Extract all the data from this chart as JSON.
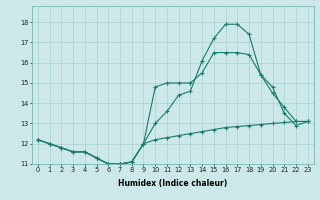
{
  "xlabel": "Humidex (Indice chaleur)",
  "bg_color": "#cce8e8",
  "grid_color": "#aad0d0",
  "line_color": "#1a7a6e",
  "xlim": [
    -0.5,
    23.5
  ],
  "ylim": [
    11.0,
    18.8
  ],
  "yticks": [
    11,
    12,
    13,
    14,
    15,
    16,
    17,
    18
  ],
  "xticks": [
    0,
    1,
    2,
    3,
    4,
    5,
    6,
    7,
    8,
    9,
    10,
    11,
    12,
    13,
    14,
    15,
    16,
    17,
    18,
    19,
    20,
    21,
    22,
    23
  ],
  "line1_x": [
    0,
    1,
    2,
    3,
    4,
    5,
    6,
    7,
    8,
    9,
    10,
    11,
    12,
    13,
    14,
    15,
    16,
    17,
    18,
    19,
    20,
    21,
    22,
    23
  ],
  "line1_y": [
    12.2,
    12.0,
    11.8,
    11.6,
    11.6,
    11.3,
    11.0,
    11.0,
    11.1,
    12.0,
    13.0,
    13.6,
    14.4,
    14.6,
    16.1,
    17.2,
    17.9,
    17.9,
    17.4,
    15.4,
    14.5,
    13.8,
    13.1,
    13.1
  ],
  "line2_x": [
    0,
    1,
    2,
    3,
    4,
    5,
    6,
    7,
    8,
    9,
    10,
    11,
    12,
    13,
    14,
    15,
    16,
    17,
    18,
    19,
    20,
    21,
    22,
    23
  ],
  "line2_y": [
    12.2,
    12.0,
    11.8,
    11.6,
    11.6,
    11.3,
    11.0,
    11.0,
    11.1,
    12.0,
    14.8,
    15.0,
    15.0,
    15.0,
    15.5,
    16.5,
    16.5,
    16.5,
    16.4,
    15.4,
    14.8,
    13.5,
    12.9,
    13.1
  ],
  "line3_x": [
    0,
    1,
    2,
    3,
    4,
    5,
    6,
    7,
    8,
    9,
    10,
    11,
    12,
    13,
    14,
    15,
    16,
    17,
    18,
    19,
    20,
    21,
    22,
    23
  ],
  "line3_y": [
    12.2,
    12.0,
    11.8,
    11.6,
    11.6,
    11.3,
    11.0,
    11.0,
    11.1,
    12.0,
    12.2,
    12.3,
    12.4,
    12.5,
    12.6,
    12.7,
    12.8,
    12.85,
    12.9,
    12.95,
    13.0,
    13.05,
    13.1,
    13.1
  ],
  "xlabel_fontsize": 5.5,
  "tick_fontsize": 4.8,
  "linewidth": 0.8,
  "markersize": 2.5
}
